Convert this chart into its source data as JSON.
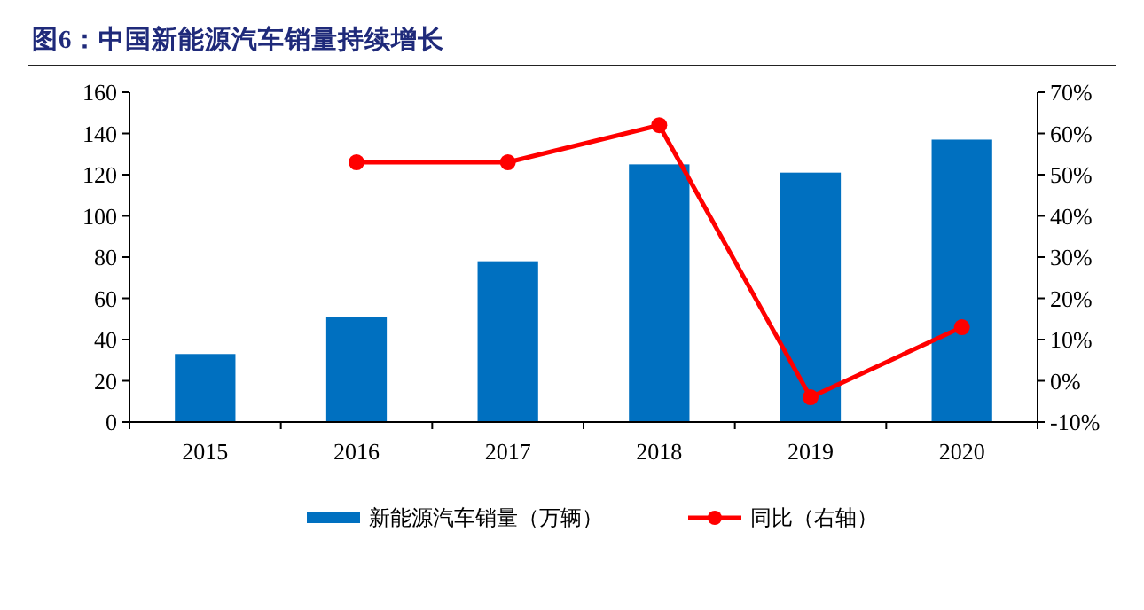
{
  "chart_data": {
    "type": "bar",
    "title": "图6：中国新能源汽车销量持续增长",
    "categories": [
      "2015",
      "2016",
      "2017",
      "2018",
      "2019",
      "2020"
    ],
    "series": [
      {
        "name": "新能源汽车销量（万辆）",
        "color": "#0070c0",
        "values": [
          33,
          51,
          78,
          125,
          121,
          137
        ]
      },
      {
        "name": "同比（右轴）",
        "type": "line",
        "axis": "y2",
        "color": "#ff0000",
        "marker": "circle",
        "values": [
          null,
          53,
          53,
          62,
          -4,
          13
        ]
      }
    ],
    "ylim": [
      0,
      160
    ],
    "yticks": [
      0,
      20,
      40,
      60,
      80,
      100,
      120,
      140,
      160
    ],
    "y2lim": [
      -10,
      70
    ],
    "y2ticks": [
      {
        "value": -10,
        "label": "-10%"
      },
      {
        "value": 0,
        "label": "0%"
      },
      {
        "value": 10,
        "label": "10%"
      },
      {
        "value": 20,
        "label": "20%"
      },
      {
        "value": 30,
        "label": "30%"
      },
      {
        "value": 40,
        "label": "40%"
      },
      {
        "value": 50,
        "label": "50%"
      },
      {
        "value": 60,
        "label": "60%"
      },
      {
        "value": 70,
        "label": "70%"
      }
    ],
    "grid": false,
    "legend": "bottom"
  }
}
